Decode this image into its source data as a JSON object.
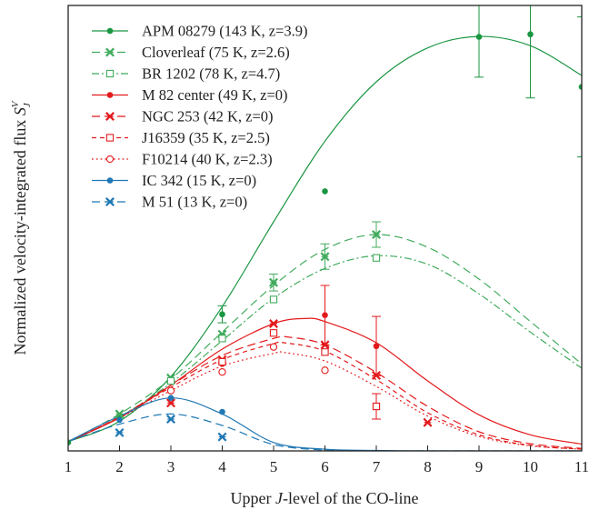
{
  "chart_data": {
    "type": "line",
    "xlabel": "Upper J-level of the CO-line",
    "xlabel_parts": {
      "pre": "Upper ",
      "italic": "J",
      "post": "-level of the CO-line"
    },
    "ylabel": "Normalized velocity-integrated flux S_J^V",
    "ylabel_parts": {
      "main": "Normalized velocity-integrated flux ",
      "sym": "S",
      "sub": "J",
      "sup": "V"
    },
    "xlim": [
      1,
      11
    ],
    "ylim": [
      0,
      1.05
    ],
    "x_ticks": [
      "1",
      "2",
      "3",
      "4",
      "5",
      "6",
      "7",
      "8",
      "9",
      "10",
      "11"
    ],
    "grid": false,
    "legend_position": "top-left",
    "series": [
      {
        "name": "APM 08279 (143 K, z=3.9)",
        "color": "#1a9641",
        "marker": "dot",
        "dash": "solid",
        "points": [
          [
            1,
            0.02
          ],
          [
            2,
            0.083
          ],
          [
            3,
            0.167
          ],
          [
            4,
            0.322
          ],
          [
            6,
            0.612
          ],
          [
            9,
            0.976
          ],
          [
            10,
            0.982
          ],
          [
            11,
            0.858
          ]
        ],
        "errors": [
          [
            4,
            0.02
          ],
          [
            9,
            0.095
          ],
          [
            10,
            0.15
          ],
          [
            11,
            0.165
          ]
        ],
        "curve": [
          [
            1,
            0.022
          ],
          [
            2,
            0.07
          ],
          [
            3,
            0.175
          ],
          [
            4,
            0.34
          ],
          [
            5,
            0.54
          ],
          [
            6,
            0.73
          ],
          [
            7,
            0.87
          ],
          [
            8,
            0.95
          ],
          [
            9,
            0.977
          ],
          [
            10,
            0.955
          ],
          [
            11,
            0.885
          ]
        ]
      },
      {
        "name": "Cloverleaf (75 K, z=2.6)",
        "color": "#41ab5d",
        "marker": "x",
        "dash": "long",
        "points": [
          [
            2,
            0.087
          ],
          [
            3,
            0.172
          ],
          [
            4,
            0.275
          ],
          [
            5,
            0.397
          ],
          [
            6,
            0.458
          ],
          [
            7,
            0.51
          ]
        ],
        "errors": [
          [
            5,
            0.02
          ],
          [
            6,
            0.03
          ],
          [
            7,
            0.03
          ]
        ],
        "curve": [
          [
            1,
            0.022
          ],
          [
            2,
            0.087
          ],
          [
            3,
            0.17
          ],
          [
            4,
            0.28
          ],
          [
            5,
            0.39
          ],
          [
            6,
            0.475
          ],
          [
            7,
            0.51
          ],
          [
            8,
            0.48
          ],
          [
            9,
            0.405
          ],
          [
            10,
            0.305
          ],
          [
            11,
            0.205
          ]
        ]
      },
      {
        "name": "BR 1202 (78 K, z=4.7)",
        "color": "#41ab5d",
        "marker": "square",
        "dash": "dashdot",
        "points": [
          [
            3,
            0.165
          ],
          [
            4,
            0.265
          ],
          [
            5,
            0.357
          ],
          [
            7,
            0.455
          ]
        ],
        "errors": [],
        "curve": [
          [
            1,
            0.022
          ],
          [
            2,
            0.08
          ],
          [
            3,
            0.16
          ],
          [
            4,
            0.26
          ],
          [
            5,
            0.36
          ],
          [
            6,
            0.43
          ],
          [
            7,
            0.46
          ],
          [
            8,
            0.44
          ],
          [
            9,
            0.37
          ],
          [
            10,
            0.28
          ],
          [
            11,
            0.195
          ]
        ]
      },
      {
        "name": "M 82 center (49 K, z=0)",
        "color": "#e31a1c",
        "marker": "dot",
        "dash": "solid",
        "points": [
          [
            4,
            0.205
          ],
          [
            6,
            0.32
          ],
          [
            7,
            0.247
          ]
        ],
        "errors": [
          [
            6,
            0.07
          ],
          [
            7,
            0.07
          ]
        ],
        "curve": [
          [
            1,
            0.022
          ],
          [
            2,
            0.078
          ],
          [
            3,
            0.155
          ],
          [
            4,
            0.24
          ],
          [
            5,
            0.3
          ],
          [
            5.6,
            0.312
          ],
          [
            6,
            0.305
          ],
          [
            7,
            0.255
          ],
          [
            8,
            0.165
          ],
          [
            9,
            0.085
          ],
          [
            10,
            0.038
          ],
          [
            11,
            0.016
          ]
        ]
      },
      {
        "name": "NGC 253 (42 K, z=0)",
        "color": "#e31a1c",
        "marker": "x",
        "dash": "long",
        "points": [
          [
            3,
            0.113
          ],
          [
            4,
            0.215
          ],
          [
            5,
            0.3
          ],
          [
            6,
            0.25
          ],
          [
            7,
            0.178
          ],
          [
            8,
            0.067
          ]
        ],
        "errors": [],
        "curve": [
          [
            1,
            0.022
          ],
          [
            2,
            0.08
          ],
          [
            3,
            0.155
          ],
          [
            4,
            0.225
          ],
          [
            5,
            0.265
          ],
          [
            5.3,
            0.268
          ],
          [
            6,
            0.25
          ],
          [
            7,
            0.185
          ],
          [
            8,
            0.105
          ],
          [
            9,
            0.045
          ],
          [
            10,
            0.017
          ],
          [
            11,
            0.006
          ]
        ]
      },
      {
        "name": "J16359 (35 K, z=2.5)",
        "color": "#e31a1c",
        "marker": "square",
        "dash": "short",
        "points": [
          [
            4,
            0.21
          ],
          [
            5,
            0.278
          ],
          [
            6,
            0.233
          ],
          [
            7,
            0.105
          ]
        ],
        "errors": [
          [
            7,
            0.03
          ]
        ],
        "curve": [
          [
            1,
            0.022
          ],
          [
            2,
            0.08
          ],
          [
            3,
            0.15
          ],
          [
            4,
            0.215
          ],
          [
            5,
            0.253
          ],
          [
            5.2,
            0.255
          ],
          [
            6,
            0.235
          ],
          [
            7,
            0.168
          ],
          [
            8,
            0.09
          ],
          [
            9,
            0.038
          ],
          [
            10,
            0.013
          ],
          [
            11,
            0.004
          ]
        ]
      },
      {
        "name": "F10214 (40 K, z=2.3)",
        "color": "#e31a1c",
        "marker": "circle",
        "dash": "dotted",
        "points": [
          [
            3,
            0.142
          ],
          [
            4,
            0.186
          ],
          [
            5,
            0.245
          ],
          [
            6,
            0.19
          ]
        ],
        "errors": [],
        "curve": [
          [
            1,
            0.022
          ],
          [
            2,
            0.078
          ],
          [
            3,
            0.142
          ],
          [
            4,
            0.2
          ],
          [
            5,
            0.23
          ],
          [
            5.2,
            0.232
          ],
          [
            6,
            0.212
          ],
          [
            7,
            0.152
          ],
          [
            8,
            0.082
          ],
          [
            9,
            0.034
          ],
          [
            10,
            0.012
          ],
          [
            11,
            0.004
          ]
        ]
      },
      {
        "name": "IC 342 (15 K, z=0)",
        "color": "#1f78b4",
        "marker": "dot",
        "dash": "solid",
        "points": [
          [
            2,
            0.073
          ],
          [
            3,
            0.125
          ],
          [
            4,
            0.092
          ]
        ],
        "errors": [],
        "curve": [
          [
            1,
            0.022
          ],
          [
            2,
            0.082
          ],
          [
            3,
            0.125
          ],
          [
            4,
            0.087
          ],
          [
            5,
            0.02
          ],
          [
            6,
            0.004
          ],
          [
            7,
            0.001
          ],
          [
            8,
            0
          ],
          [
            9,
            0
          ],
          [
            10,
            0
          ],
          [
            11,
            0
          ]
        ]
      },
      {
        "name": "M 51 (13 K, z=0)",
        "color": "#1f78b4",
        "marker": "x",
        "dash": "long",
        "points": [
          [
            2,
            0.043
          ],
          [
            3,
            0.075
          ],
          [
            4,
            0.033
          ]
        ],
        "errors": [],
        "curve": [
          [
            1,
            0.022
          ],
          [
            2,
            0.063
          ],
          [
            3,
            0.087
          ],
          [
            4,
            0.06
          ],
          [
            5,
            0.015
          ],
          [
            6,
            0.002
          ],
          [
            7,
            0
          ],
          [
            8,
            0
          ],
          [
            9,
            0
          ],
          [
            10,
            0
          ],
          [
            11,
            0
          ]
        ]
      }
    ]
  }
}
